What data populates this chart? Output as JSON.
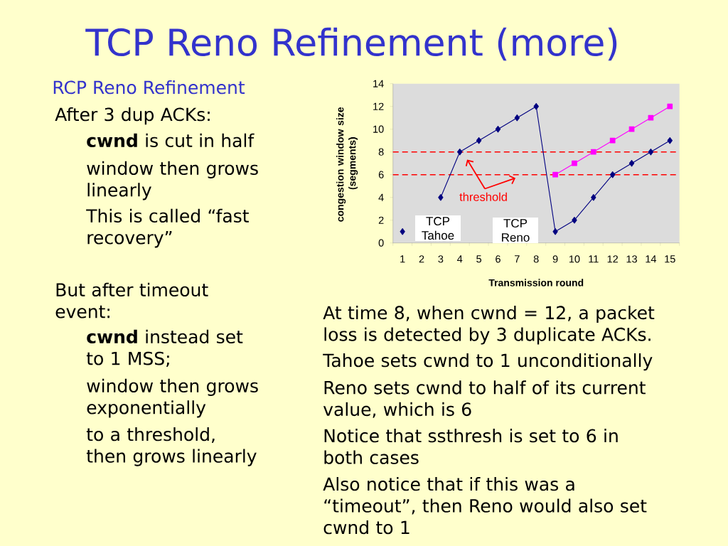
{
  "chart_data": {
    "type": "line",
    "title": "TCP Reno Refinement (more)",
    "subtitle": "RCP Reno Refinement",
    "xlabel": "Transmission round",
    "ylabel": "congestion window size (segments)",
    "categories": [
      "1",
      "2",
      "3",
      "4",
      "5",
      "6",
      "7",
      "8",
      "9",
      "10",
      "11",
      "12",
      "13",
      "14",
      "15"
    ],
    "series": [
      {
        "color": "#000080",
        "marker": "diamond",
        "values": [
          1,
          null,
          4,
          8,
          9,
          10,
          11,
          12,
          1,
          2,
          4,
          6,
          7,
          8,
          9
        ]
      },
      {
        "color": "#ff00ff",
        "marker": "square",
        "values": [
          null,
          null,
          null,
          null,
          null,
          null,
          null,
          null,
          6,
          7,
          8,
          9,
          10,
          11,
          12
        ]
      }
    ],
    "ylim": [
      0,
      14
    ],
    "yticks": [
      0,
      2,
      4,
      6,
      8,
      10,
      12,
      14
    ],
    "ref_lines": [
      {
        "axis": "y",
        "value": 8,
        "color": "#ff0000",
        "line_style": "dashed"
      },
      {
        "axis": "y",
        "value": 6,
        "color": "#ff0000",
        "line_style": "dashed"
      }
    ],
    "annotations": [
      "TCP Tahoe",
      "TCP Reno",
      "threshold",
      "After 3 dup ACKs:",
      "**cwnd** is cut in half",
      "window then grows linearly",
      "This is called “fast recovery”",
      "But after timeout event:",
      "**cwnd** instead set to 1 MSS;",
      "window then grows exponentially",
      "to a threshold, then grows linearly",
      "At time 8, when cwnd = 12, a packet loss is detected by 3 duplicate ACKs.",
      "Tahoe sets cwnd to 1 unconditionally",
      "Reno sets cwnd to half of its current value, which is 6",
      "Notice that ssthresh is set to 6 in both cases",
      "Also notice that if this was a “timeout”, then Reno would also set cwnd to 1"
    ]
  }
}
